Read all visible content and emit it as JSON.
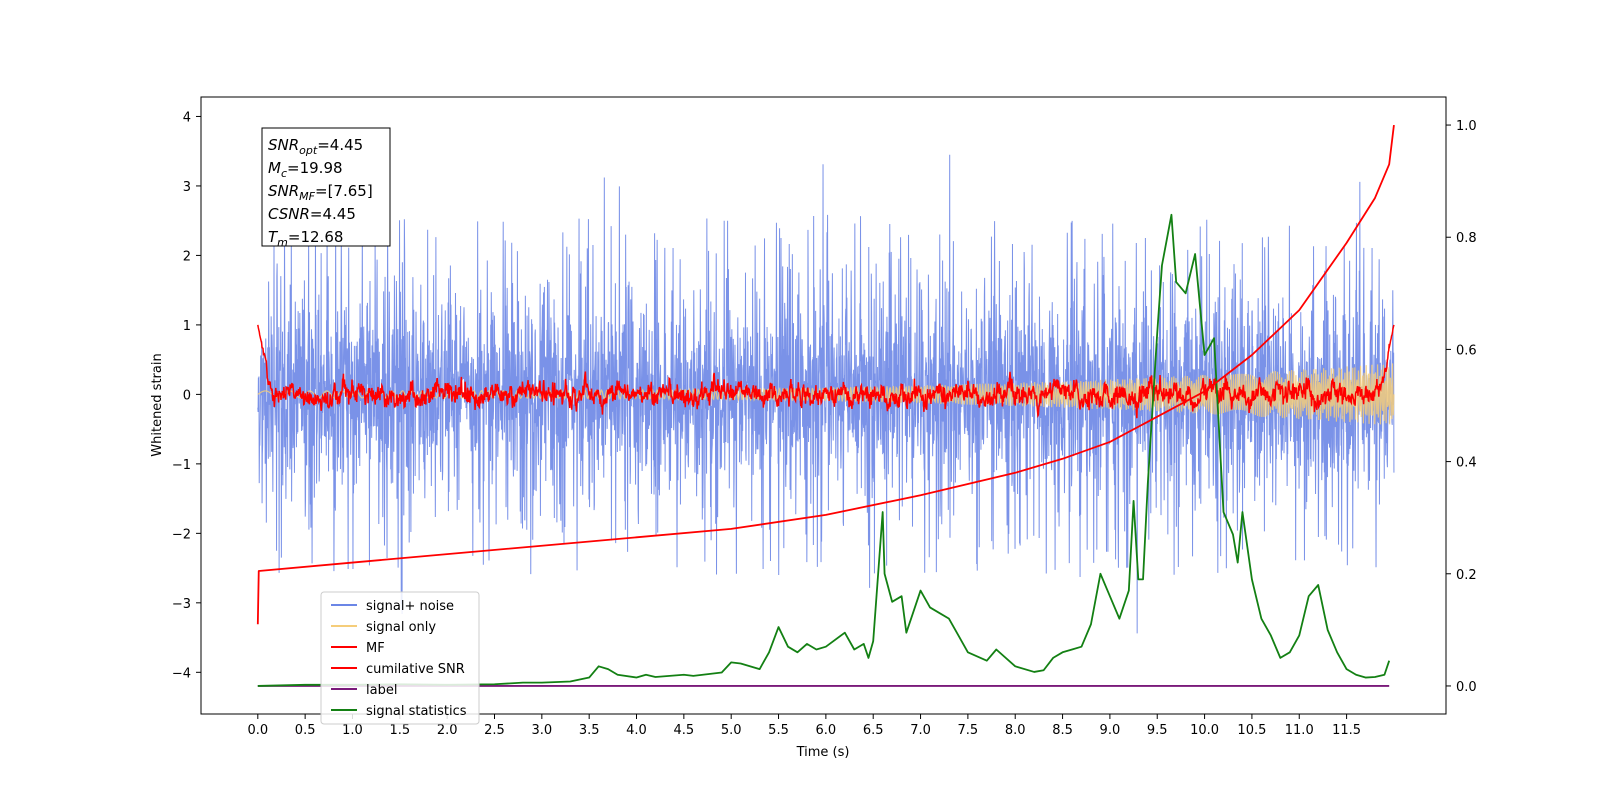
{
  "chart_data": {
    "type": "line",
    "title": "",
    "xlabel": "Time (s)",
    "ylabel": "Whitened strain",
    "xlim": [
      -0.6,
      12.55
    ],
    "ylim": [
      -4.6,
      4.28
    ],
    "y2lim": [
      -0.05,
      1.05
    ],
    "x_ticks": [
      "0.0",
      "0.5",
      "1.0",
      "1.5",
      "2.0",
      "2.5",
      "3.0",
      "3.5",
      "4.0",
      "4.5",
      "5.0",
      "5.5",
      "6.0",
      "6.5",
      "7.0",
      "7.5",
      "8.0",
      "8.5",
      "9.0",
      "9.5",
      "10.0",
      "10.5",
      "11.0",
      "11.5"
    ],
    "y_ticks": [
      "−4",
      "−3",
      "−2",
      "−1",
      "0",
      "1",
      "2",
      "3",
      "4"
    ],
    "y2_ticks": [
      "0.0",
      "0.2",
      "0.4",
      "0.6",
      "0.8",
      "1.0"
    ],
    "grid": false,
    "legend_position": "bottom-left",
    "legend": [
      {
        "label": "signal+ noise",
        "color": "#6b86e6"
      },
      {
        "label": "signal only",
        "color": "#f5cd7a"
      },
      {
        "label": "MF",
        "color": "#ff0000"
      },
      {
        "label": "cumilative SNR",
        "color": "#ff0000"
      },
      {
        "label": "label",
        "color": "#7a1a7a"
      },
      {
        "label": "signal statistics",
        "color": "#138013"
      }
    ],
    "annotation": {
      "lines": [
        {
          "sym": "SNR",
          "sub": "opt",
          "val": "=4.45"
        },
        {
          "sym": "M",
          "sub": "c",
          "val": "=19.98"
        },
        {
          "sym": "SNR",
          "sub": "MF",
          "val": "=[7.65]"
        },
        {
          "sym": "CSNR",
          "sub": "",
          "val": "=4.45"
        },
        {
          "sym": "T",
          "sub": "m",
          "val": "=12.68"
        }
      ]
    },
    "series": [
      {
        "name": "signal+ noise",
        "axis": "left",
        "render": "noise",
        "x_range": [
          0,
          12
        ],
        "center": 0,
        "core_amplitude": 1.35,
        "extreme_range": [
          -3.6,
          3.5
        ],
        "color": "#6b86e6"
      },
      {
        "name": "signal only",
        "axis": "left",
        "render": "chirp",
        "x_range": [
          0,
          12
        ],
        "amplitude_start": 0.05,
        "amplitude_end": 0.45,
        "color": "#f5cd7a"
      },
      {
        "name": "MF",
        "axis": "left",
        "render": "band",
        "x_range": [
          0,
          12
        ],
        "center": 0.0,
        "amplitude": 0.3,
        "start_value": 1.0,
        "end_value": 1.0,
        "color": "#ff0000"
      },
      {
        "name": "cumilative SNR",
        "axis": "right",
        "color": "#ff0000",
        "x": [
          0,
          0.01,
          1,
          2,
          3,
          4,
          5,
          6,
          7,
          7.5,
          8,
          8.5,
          9,
          9.5,
          10,
          10.5,
          11,
          11.5,
          11.8,
          11.95,
          12
        ],
        "y": [
          0.11,
          0.205,
          0.22,
          0.235,
          0.25,
          0.265,
          0.28,
          0.305,
          0.34,
          0.36,
          0.38,
          0.405,
          0.435,
          0.48,
          0.525,
          0.59,
          0.67,
          0.79,
          0.87,
          0.93,
          1.0
        ]
      },
      {
        "name": "label",
        "axis": "right",
        "color": "#7a1a7a",
        "x": [
          0,
          11.95
        ],
        "y": [
          0.0,
          0.0
        ]
      },
      {
        "name": "signal statistics",
        "axis": "right",
        "color": "#138013",
        "x": [
          0,
          0.5,
          1.0,
          1.5,
          2.0,
          2.5,
          2.8,
          3.0,
          3.3,
          3.5,
          3.6,
          3.7,
          3.8,
          4.0,
          4.1,
          4.2,
          4.5,
          4.6,
          4.9,
          5.0,
          5.1,
          5.3,
          5.4,
          5.5,
          5.6,
          5.7,
          5.8,
          5.9,
          6.0,
          6.2,
          6.3,
          6.4,
          6.45,
          6.5,
          6.6,
          6.62,
          6.7,
          6.8,
          6.85,
          6.9,
          7.0,
          7.1,
          7.2,
          7.3,
          7.4,
          7.5,
          7.7,
          7.8,
          8.0,
          8.2,
          8.3,
          8.4,
          8.5,
          8.6,
          8.7,
          8.8,
          8.9,
          9.0,
          9.1,
          9.2,
          9.25,
          9.3,
          9.35,
          9.4,
          9.5,
          9.55,
          9.65,
          9.7,
          9.8,
          9.9,
          10.0,
          10.1,
          10.2,
          10.3,
          10.35,
          10.4,
          10.5,
          10.6,
          10.7,
          10.8,
          10.9,
          11.0,
          11.1,
          11.2,
          11.3,
          11.4,
          11.5,
          11.6,
          11.7,
          11.8,
          11.9,
          11.95
        ],
        "y": [
          0.0,
          0.002,
          0.002,
          0.003,
          0.002,
          0.003,
          0.006,
          0.006,
          0.008,
          0.015,
          0.035,
          0.03,
          0.02,
          0.015,
          0.02,
          0.016,
          0.02,
          0.018,
          0.024,
          0.042,
          0.04,
          0.03,
          0.06,
          0.105,
          0.07,
          0.06,
          0.075,
          0.065,
          0.07,
          0.095,
          0.065,
          0.075,
          0.05,
          0.08,
          0.31,
          0.2,
          0.15,
          0.16,
          0.095,
          0.12,
          0.17,
          0.14,
          0.13,
          0.12,
          0.09,
          0.06,
          0.045,
          0.065,
          0.035,
          0.025,
          0.028,
          0.05,
          0.06,
          0.065,
          0.07,
          0.11,
          0.2,
          0.16,
          0.12,
          0.17,
          0.33,
          0.19,
          0.19,
          0.36,
          0.63,
          0.75,
          0.84,
          0.72,
          0.7,
          0.77,
          0.59,
          0.62,
          0.31,
          0.27,
          0.22,
          0.31,
          0.19,
          0.12,
          0.09,
          0.05,
          0.06,
          0.09,
          0.16,
          0.18,
          0.1,
          0.06,
          0.03,
          0.02,
          0.015,
          0.016,
          0.02,
          0.045
        ]
      }
    ]
  }
}
